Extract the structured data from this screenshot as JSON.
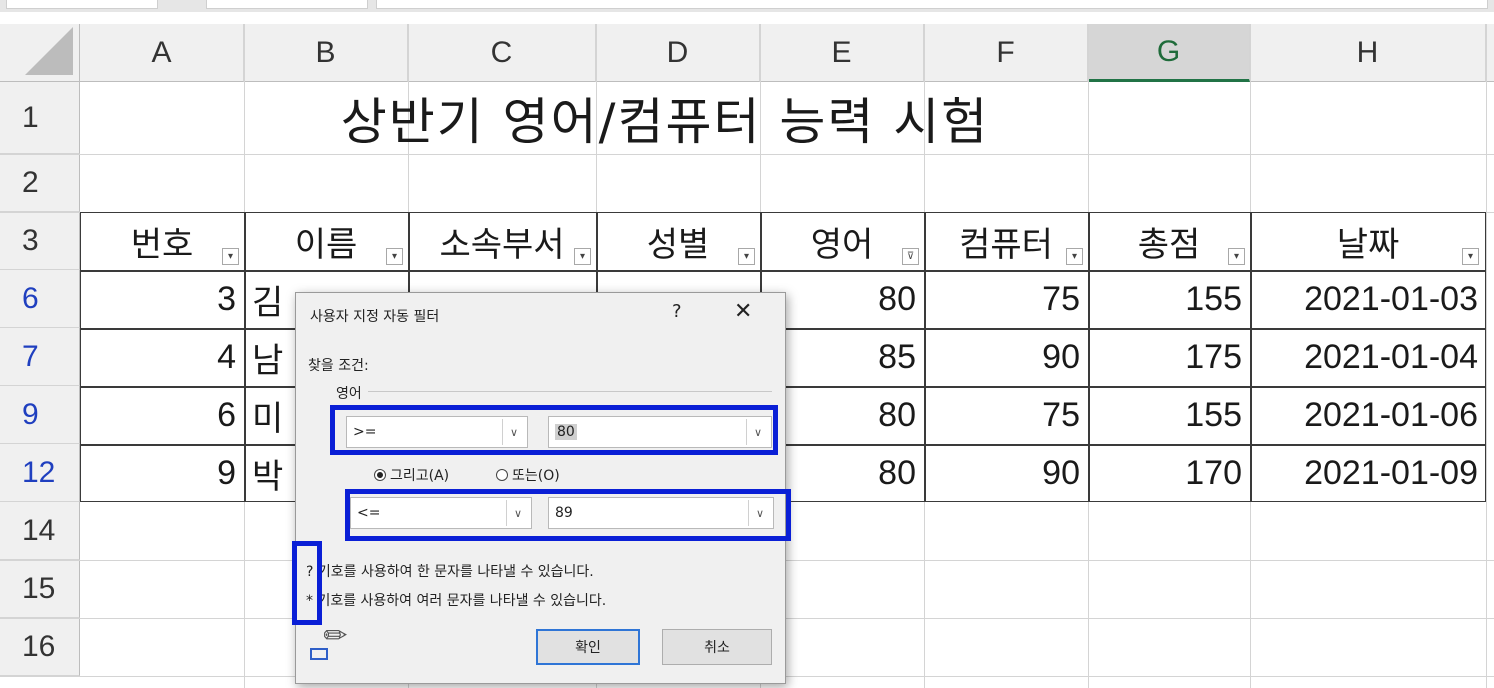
{
  "columns": [
    "A",
    "B",
    "C",
    "D",
    "E",
    "F",
    "G",
    "H"
  ],
  "selected_column": "G",
  "row_numbers": [
    "1",
    "2",
    "3",
    "6",
    "7",
    "9",
    "12",
    "14",
    "15",
    "16"
  ],
  "title": "상반기 영어/컴퓨터 능력 시험",
  "headers": [
    "번호",
    "이름",
    "소속부서",
    "성별",
    "영어",
    "컴퓨터",
    "총점",
    "날짜"
  ],
  "rows": [
    {
      "no": "3",
      "name": "김",
      "e": "80",
      "c": "75",
      "t": "155",
      "date": "2021-01-03"
    },
    {
      "no": "4",
      "name": "남",
      "e": "85",
      "c": "90",
      "t": "175",
      "date": "2021-01-04"
    },
    {
      "no": "6",
      "name": "미",
      "e": "80",
      "c": "75",
      "t": "155",
      "date": "2021-01-06"
    },
    {
      "no": "9",
      "name": "박",
      "e": "80",
      "c": "90",
      "t": "170",
      "date": "2021-01-09"
    }
  ],
  "dialog": {
    "title": "사용자 지정 자동 필터",
    "help": "?",
    "close": "✕",
    "criteria_label": "찾을 조건:",
    "field_label": "영어",
    "op1": ">=",
    "val1": "80",
    "and_label": "그리고(A)",
    "or_label": "또는(O)",
    "op2": "<=",
    "val2": "89",
    "hint1": "? 기호를 사용하여 한 문자를 나타낼 수 있습니다.",
    "hint2": "* 기호를 사용하여 여러 문자를 나타낼 수 있습니다.",
    "ok": "확인",
    "cancel": "취소"
  }
}
